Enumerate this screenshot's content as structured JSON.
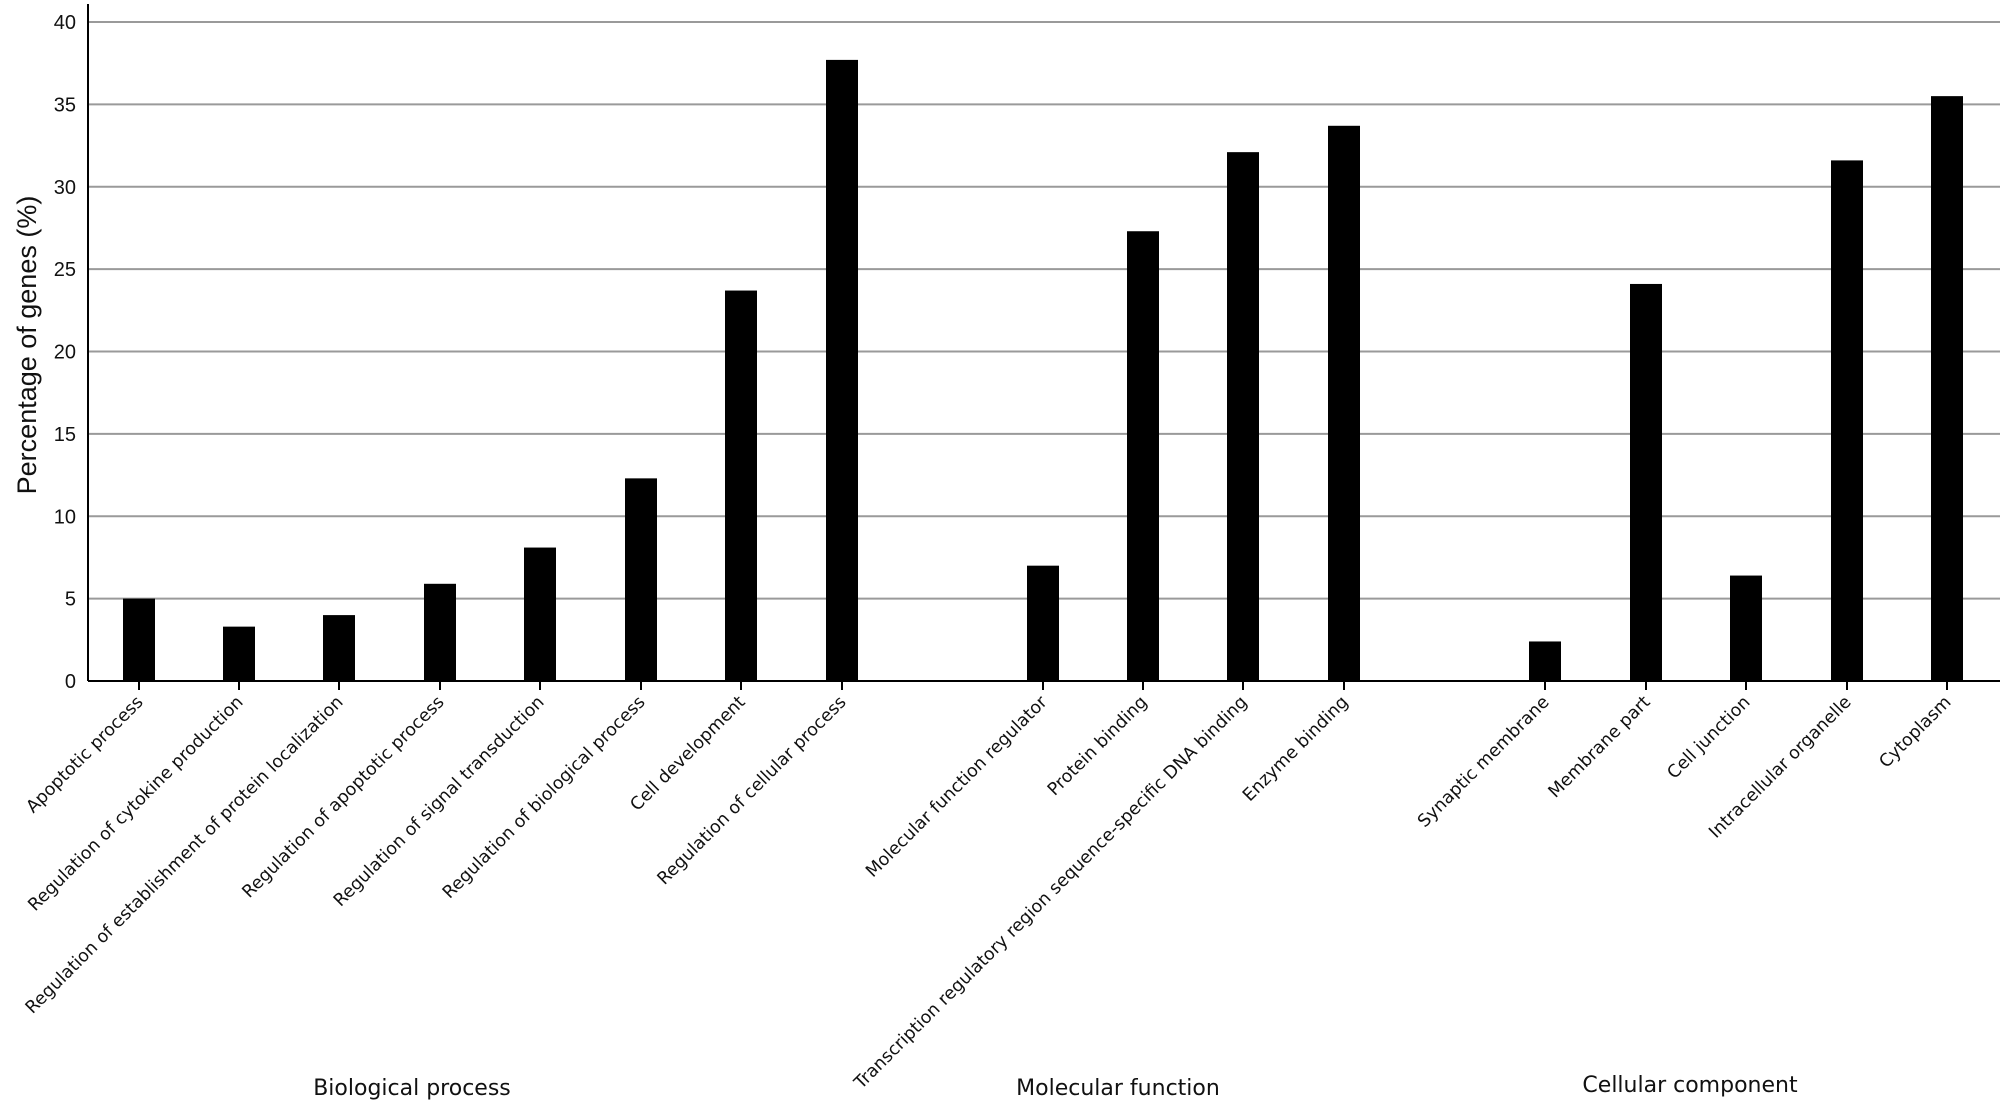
{
  "chart_data": {
    "type": "bar",
    "title": "",
    "xlabel": "",
    "ylabel": "Percentage of genes (%)",
    "ylim": [
      0,
      40
    ],
    "yticks": [
      0,
      5,
      10,
      15,
      20,
      25,
      30,
      35,
      40
    ],
    "grid": true,
    "legend": "none",
    "bar_color": "#000000",
    "groups": [
      {
        "name": "Biological process",
        "categories": [
          "Apoptotic process",
          "Regulation of cytokine production",
          "Regulation of establishment of protein localization",
          "Regulation of apoptotic process",
          "Regulation of signal transduction",
          "Regulation of biological process",
          "Cell development",
          "Regulation of cellular process"
        ],
        "values": [
          5.0,
          3.3,
          4.0,
          5.9,
          8.1,
          12.3,
          23.7,
          37.7
        ]
      },
      {
        "name": "Molecular function",
        "categories": [
          "Molecular function regulator",
          "Protein binding",
          "Transcription regulatory region sequence-specific DNA binding",
          "Enzyme binding"
        ],
        "values": [
          7.0,
          27.3,
          32.1,
          33.7
        ]
      },
      {
        "name": "Cellular component",
        "categories": [
          "Synaptic membrane",
          "Membrane part",
          "Cell junction",
          "Intracellular organelle",
          "Cytoplasm"
        ],
        "values": [
          2.4,
          24.1,
          6.4,
          31.6,
          35.5
        ]
      }
    ]
  }
}
